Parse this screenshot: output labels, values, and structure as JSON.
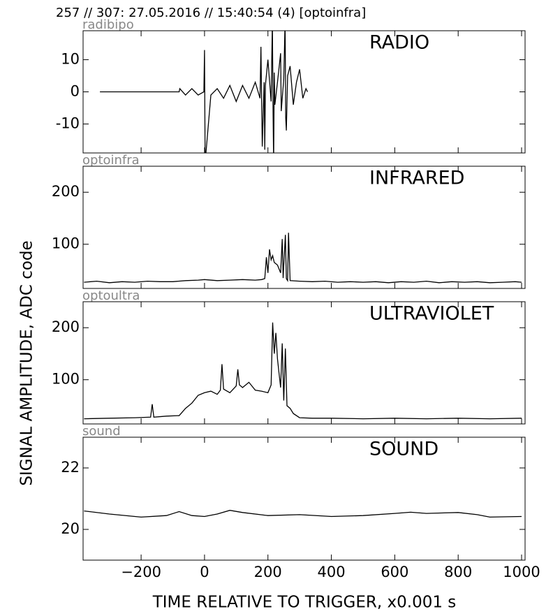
{
  "title": "257 // 307:   27.05.2016 // 15:40:54 (4)  [optoinfra]",
  "ylabel": "SIGNAL AMPLITUDE,  ADC code",
  "xlabel": "TIME RELATIVE TO TRIGGER,   x0.001 s",
  "chart_data": [
    {
      "type": "line",
      "subtitle": "radibipo",
      "annotation": "RADIO",
      "color": "#000000",
      "xlim": [
        -383,
        1011
      ],
      "ylim": [
        -19,
        19
      ],
      "yticks": [
        -10,
        0,
        10
      ],
      "x": [
        -330,
        -80,
        -78,
        -60,
        -40,
        -20,
        -2,
        0,
        2,
        20,
        40,
        60,
        80,
        100,
        120,
        140,
        160,
        175,
        178,
        182,
        188,
        190,
        192,
        200,
        210,
        214,
        216,
        218,
        220,
        222,
        230,
        240,
        242,
        250,
        254,
        256,
        258,
        262,
        270,
        280,
        290,
        300,
        310,
        320,
        325
      ],
      "values": [
        0,
        0,
        1,
        -1,
        1,
        -1,
        0,
        13,
        -22,
        -1,
        1,
        -2,
        2,
        -3,
        2,
        -2,
        3,
        -2,
        14,
        -17,
        3,
        -18,
        2,
        10,
        -3,
        22,
        -5,
        -22,
        6,
        -4,
        3,
        12,
        -6,
        4,
        22,
        -8,
        -12,
        5,
        8,
        -4,
        3,
        7,
        -2,
        1,
        0
      ]
    },
    {
      "type": "line",
      "subtitle": "optoinfra",
      "annotation": "INFRARED",
      "color": "#000000",
      "xlim": [
        -383,
        1011
      ],
      "ylim": [
        15,
        250
      ],
      "yticks": [
        100,
        200
      ],
      "x": [
        -380,
        -340,
        -300,
        -260,
        -220,
        -180,
        -140,
        -100,
        -60,
        -20,
        0,
        40,
        80,
        120,
        160,
        180,
        190,
        195,
        200,
        205,
        210,
        215,
        220,
        230,
        240,
        245,
        248,
        255,
        258,
        262,
        265,
        270,
        300,
        340,
        380,
        420,
        460,
        500,
        540,
        580,
        620,
        660,
        700,
        740,
        780,
        820,
        860,
        900,
        940,
        980,
        1000
      ],
      "values": [
        27,
        29,
        26,
        28,
        27,
        29,
        28,
        28,
        30,
        31,
        32,
        30,
        31,
        32,
        31,
        32,
        34,
        75,
        45,
        90,
        70,
        78,
        65,
        60,
        45,
        110,
        35,
        118,
        34,
        30,
        122,
        30,
        29,
        28,
        29,
        27,
        28,
        27,
        28,
        26,
        28,
        27,
        29,
        26,
        28,
        27,
        28,
        26,
        27,
        28,
        27
      ]
    },
    {
      "type": "line",
      "subtitle": "optoultra",
      "annotation": "ULTRAVIOLET",
      "color": "#000000",
      "xlim": [
        -383,
        1011
      ],
      "ylim": [
        15,
        250
      ],
      "yticks": [
        100,
        200
      ],
      "x": [
        -380,
        -300,
        -220,
        -170,
        -165,
        -160,
        -120,
        -80,
        -60,
        -40,
        -20,
        0,
        20,
        40,
        50,
        55,
        60,
        80,
        100,
        105,
        110,
        120,
        140,
        160,
        180,
        200,
        210,
        215,
        220,
        225,
        230,
        240,
        245,
        250,
        255,
        260,
        270,
        280,
        300,
        340,
        400,
        500,
        600,
        700,
        800,
        900,
        1000
      ],
      "values": [
        25,
        26,
        27,
        28,
        53,
        28,
        30,
        31,
        45,
        55,
        70,
        75,
        78,
        72,
        80,
        130,
        82,
        75,
        88,
        120,
        90,
        85,
        95,
        80,
        78,
        75,
        90,
        210,
        150,
        190,
        140,
        85,
        170,
        60,
        160,
        50,
        45,
        35,
        27,
        26,
        26,
        25,
        26,
        25,
        26,
        25,
        26
      ]
    },
    {
      "type": "line",
      "subtitle": "sound",
      "annotation": "SOUND",
      "color": "#000000",
      "xlim": [
        -383,
        1011
      ],
      "ylim": [
        19,
        23
      ],
      "yticks": [
        20,
        22
      ],
      "xticks": [
        {
          "value": -200,
          "label": "−200"
        },
        0,
        200,
        400,
        600,
        800,
        1000
      ],
      "x": [
        -380,
        -300,
        -200,
        -120,
        -80,
        -40,
        0,
        40,
        80,
        120,
        200,
        300,
        400,
        500,
        600,
        650,
        700,
        800,
        860,
        900,
        1000
      ],
      "values": [
        20.6,
        20.5,
        20.4,
        20.45,
        20.58,
        20.45,
        20.42,
        20.5,
        20.62,
        20.55,
        20.45,
        20.48,
        20.42,
        20.45,
        20.52,
        20.56,
        20.52,
        20.55,
        20.48,
        20.4,
        20.42
      ]
    }
  ]
}
